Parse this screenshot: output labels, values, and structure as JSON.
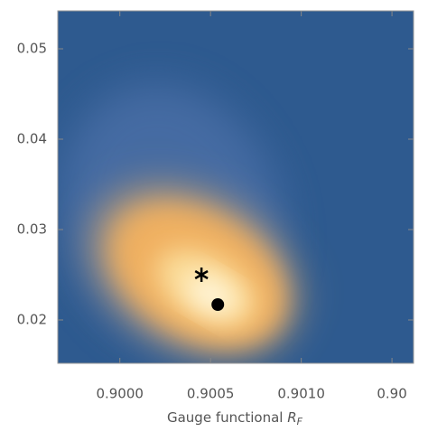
{
  "chart_data": {
    "type": "density",
    "xlabel": "Gauge functional ",
    "xlabel_symbol": "R",
    "xlabel_subscript": "F",
    "xlim": [
      0.899658,
      0.901619
    ],
    "ylim": [
      0.0152,
      0.0542
    ],
    "xticks": [
      {
        "value": 0.9,
        "label": "0.9000"
      },
      0.9005,
      {
        "value": 0.901,
        "label": "0.9010"
      },
      {
        "value": 0.9015,
        "label": "0.90"
      }
    ],
    "yticks": [
      0.02,
      0.03,
      0.04,
      0.05
    ],
    "points": [
      {
        "x": 0.90045,
        "y": 0.025,
        "marker": "star"
      },
      {
        "x": 0.90054,
        "y": 0.0217,
        "marker": "circle"
      }
    ]
  }
}
